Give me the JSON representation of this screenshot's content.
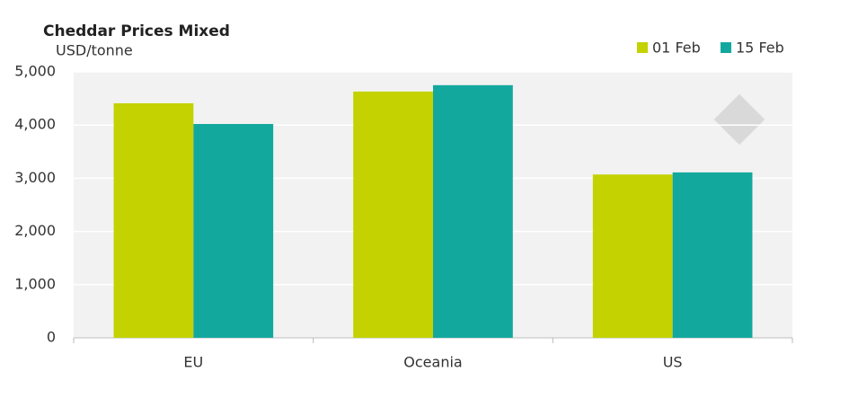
{
  "chart_data": {
    "type": "bar",
    "title": "Cheddar Prices Mixed",
    "subtitle": "USD/tonne",
    "categories": [
      "EU",
      "Oceania",
      "US"
    ],
    "series": [
      {
        "name": "01 Feb",
        "color": "#c3d200",
        "values": [
          4410,
          4630,
          3070
        ]
      },
      {
        "name": "15 Feb",
        "color": "#13a89e",
        "values": [
          4020,
          4750,
          3110
        ]
      }
    ],
    "ylim": [
      0,
      5000
    ],
    "yticks": [
      0,
      {
        "value": 1000,
        "label": "1,000"
      },
      {
        "value": 2000,
        "label": "2,000"
      },
      {
        "value": 3000,
        "label": "3,000"
      },
      {
        "value": 4000,
        "label": "4,000"
      },
      {
        "value": 5000,
        "label": "5,000"
      }
    ],
    "grid": true,
    "legend": "top-right"
  }
}
